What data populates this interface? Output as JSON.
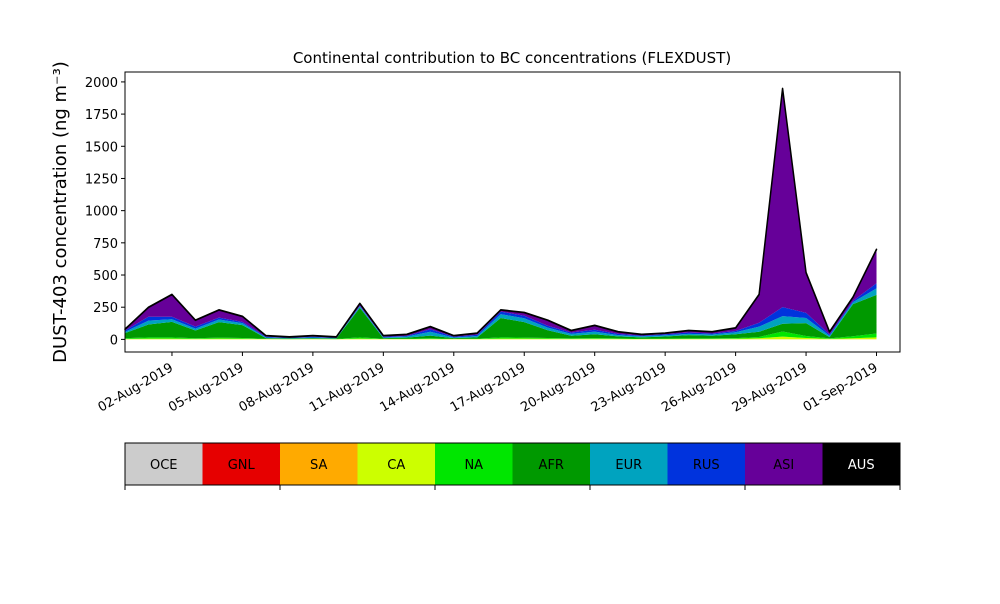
{
  "chart_data": {
    "type": "stacked_area",
    "title": "Continental contribution to BC concentrations (FLEXDUST)",
    "y_label": "DUST-403 concentration (ng m⁻³)",
    "x": [
      "2019-07-31",
      "2019-08-01",
      "2019-08-02",
      "2019-08-03",
      "2019-08-04",
      "2019-08-05",
      "2019-08-06",
      "2019-08-07",
      "2019-08-08",
      "2019-08-09",
      "2019-08-10",
      "2019-08-11",
      "2019-08-12",
      "2019-08-13",
      "2019-08-14",
      "2019-08-15",
      "2019-08-16",
      "2019-08-17",
      "2019-08-18",
      "2019-08-19",
      "2019-08-20",
      "2019-08-21",
      "2019-08-22",
      "2019-08-23",
      "2019-08-24",
      "2019-08-25",
      "2019-08-26",
      "2019-08-27",
      "2019-08-28",
      "2019-08-29",
      "2019-08-30",
      "2019-08-31",
      "2019-09-01"
    ],
    "xlim": [
      "2019-07-31",
      "2019-09-02"
    ],
    "xticks": [
      {
        "value": "2019-08-02",
        "label": "02-Aug-2019"
      },
      {
        "value": "2019-08-05",
        "label": "05-Aug-2019"
      },
      {
        "value": "2019-08-08",
        "label": "08-Aug-2019"
      },
      {
        "value": "2019-08-11",
        "label": "11-Aug-2019"
      },
      {
        "value": "2019-08-14",
        "label": "14-Aug-2019"
      },
      {
        "value": "2019-08-17",
        "label": "17-Aug-2019"
      },
      {
        "value": "2019-08-20",
        "label": "20-Aug-2019"
      },
      {
        "value": "2019-08-23",
        "label": "23-Aug-2019"
      },
      {
        "value": "2019-08-26",
        "label": "26-Aug-2019"
      },
      {
        "value": "2019-08-29",
        "label": "29-Aug-2019"
      },
      {
        "value": "2019-09-01",
        "label": "01-Sep-2019"
      }
    ],
    "ylim": [
      -98,
      2077
    ],
    "yticks": [
      0,
      250,
      500,
      750,
      1000,
      1250,
      1500,
      1750,
      2000
    ],
    "grid": false,
    "series": [
      {
        "name": "OCE",
        "color": "#cccccc",
        "values": [
          0,
          0,
          0,
          0,
          0,
          0,
          0,
          0,
          0,
          0,
          0,
          0,
          0,
          0,
          0,
          0,
          0,
          0,
          0,
          0,
          0,
          0,
          0,
          0,
          0,
          0,
          0,
          0,
          0,
          0,
          0,
          0,
          0
        ]
      },
      {
        "name": "GNL",
        "color": "#e60000",
        "values": [
          0,
          0,
          0,
          0,
          0,
          0,
          0,
          0,
          0,
          0,
          0,
          0,
          0,
          0,
          0,
          0,
          0,
          0,
          0,
          0,
          0,
          0,
          0,
          0,
          0,
          0,
          0,
          0,
          0,
          0,
          0,
          0,
          0
        ]
      },
      {
        "name": "SA",
        "color": "#ffaa00",
        "values": [
          1,
          1,
          1,
          1,
          1,
          1,
          1,
          1,
          1,
          1,
          1,
          1,
          1,
          1,
          1,
          1,
          1,
          1,
          1,
          1,
          1,
          1,
          1,
          1,
          1,
          1,
          1,
          1,
          1,
          1,
          1,
          1,
          1
        ]
      },
      {
        "name": "CA",
        "color": "#ccff00",
        "values": [
          3,
          5,
          5,
          3,
          5,
          4,
          2,
          1,
          2,
          1,
          5,
          2,
          2,
          3,
          2,
          2,
          5,
          5,
          4,
          3,
          4,
          3,
          2,
          3,
          3,
          3,
          4,
          8,
          20,
          10,
          3,
          8,
          15
        ]
      },
      {
        "name": "NA",
        "color": "#00e600",
        "values": [
          5,
          10,
          10,
          5,
          8,
          6,
          2,
          2,
          2,
          2,
          10,
          2,
          3,
          5,
          2,
          3,
          10,
          8,
          6,
          4,
          5,
          4,
          3,
          3,
          4,
          4,
          5,
          10,
          40,
          15,
          4,
          15,
          30
        ]
      },
      {
        "name": "AFR",
        "color": "#009900",
        "values": [
          40,
          100,
          120,
          60,
          120,
          100,
          5,
          3,
          5,
          3,
          230,
          5,
          8,
          20,
          5,
          10,
          150,
          120,
          60,
          20,
          30,
          15,
          10,
          15,
          25,
          20,
          30,
          40,
          60,
          100,
          10,
          250,
          300
        ]
      },
      {
        "name": "EUR",
        "color": "#00a3bf",
        "values": [
          10,
          30,
          20,
          15,
          20,
          15,
          5,
          3,
          5,
          3,
          10,
          5,
          8,
          30,
          5,
          10,
          30,
          30,
          20,
          15,
          20,
          10,
          8,
          10,
          10,
          10,
          15,
          40,
          60,
          40,
          10,
          15,
          50
        ]
      },
      {
        "name": "RUS",
        "color": "#0033dd",
        "values": [
          10,
          30,
          20,
          15,
          15,
          10,
          5,
          3,
          5,
          3,
          5,
          5,
          5,
          20,
          5,
          10,
          20,
          20,
          15,
          10,
          15,
          10,
          5,
          8,
          10,
          8,
          10,
          30,
          70,
          40,
          10,
          10,
          40
        ]
      },
      {
        "name": "ASI",
        "color": "#660099",
        "values": [
          9,
          72,
          172,
          49,
          59,
          42,
          8,
          5,
          8,
          5,
          17,
          8,
          11,
          19,
          8,
          12,
          12,
          24,
          42,
          15,
          33,
          15,
          9,
          8,
          15,
          12,
          23,
          219,
          1697,
          312,
          20,
          29,
          262
        ]
      },
      {
        "name": "AUS",
        "color": "#000000",
        "values": [
          2,
          2,
          2,
          2,
          2,
          2,
          2,
          2,
          2,
          2,
          2,
          2,
          2,
          2,
          2,
          2,
          2,
          2,
          2,
          2,
          2,
          2,
          2,
          2,
          2,
          2,
          2,
          2,
          2,
          2,
          2,
          2,
          2
        ]
      }
    ]
  }
}
